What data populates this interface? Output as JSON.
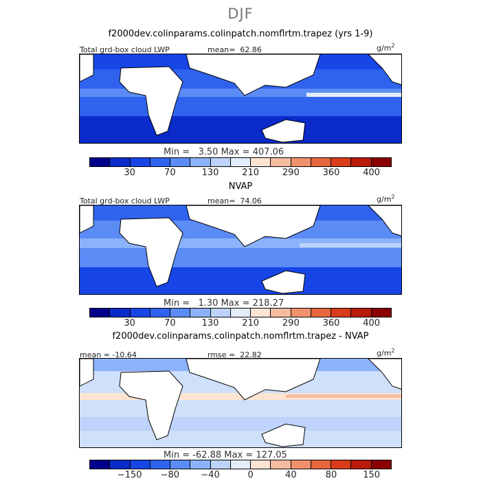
{
  "season_title": "DJF",
  "units_base": "g/m",
  "units_exp": "2",
  "palette": {
    "land": "#ffffff",
    "coast": "#000000",
    "abs_colors": [
      "#00008b",
      "#0a2ac9",
      "#1745e6",
      "#2f63ee",
      "#5b8bf5",
      "#8bb2fa",
      "#bdd3fb",
      "#e3ecfb",
      "#fde3d2",
      "#f7bca0",
      "#f0916d",
      "#e8663e",
      "#d83c1a",
      "#b81a0b",
      "#8a0000"
    ],
    "diff_colors": [
      "#00008b",
      "#0a2ac9",
      "#1745e6",
      "#2f63ee",
      "#5b8bf5",
      "#8bb2fa",
      "#bdd3fb",
      "#e3ecfb",
      "#fde3d2",
      "#f7bca0",
      "#f0916d",
      "#e8663e",
      "#d83c1a",
      "#b81a0b",
      "#8a0000"
    ]
  },
  "panels": [
    {
      "case_title": "f2000dev.colinparams.colinpatch.nomflrtm.trapez (yrs 1-9)",
      "variable": "Total grd-box cloud LWP",
      "stat_label": "mean=",
      "stat_value": "62.86",
      "min_label": "Min =",
      "min_value": "3.50",
      "max_label": "Max =",
      "max_value": "407.06",
      "colorbar_ticks": [
        "30",
        "70",
        "130",
        "210",
        "290",
        "360",
        "400"
      ],
      "ocean_color": "#2f63ee"
    },
    {
      "case_title": "NVAP",
      "variable": "Total grd-box cloud LWP",
      "stat_label": "mean=",
      "stat_value": "74.06",
      "min_label": "Min =",
      "min_value": "1.30",
      "max_label": "Max =",
      "max_value": "218.27",
      "colorbar_ticks": [
        "30",
        "70",
        "130",
        "210",
        "290",
        "360",
        "400"
      ],
      "ocean_color": "#5b8bf5"
    },
    {
      "case_title": "f2000dev.colinparams.colinpatch.nomflrtm.trapez - NVAP",
      "mean_label": "mean =",
      "mean_value": "-10.64",
      "rmse_label": "rmse =",
      "rmse_value": "22.82",
      "min_label": "Min =",
      "min_value": "-62.88",
      "max_label": "Max =",
      "max_value": "127.05",
      "colorbar_ticks": [
        "−150",
        "−80",
        "−40",
        "0",
        "40",
        "80",
        "150"
      ],
      "ocean_color": "#cfe0fb"
    }
  ],
  "chart_data": [
    {
      "type": "heatmap",
      "title": "f2000dev.colinparams.colinpatch.nomflrtm.trapez (yrs 1-9)",
      "variable": "Total grd-box cloud LWP",
      "units": "g/m2",
      "mean": 62.86,
      "min": 3.5,
      "max": 407.06,
      "contour_levels": [
        30,
        70,
        130,
        210,
        290,
        360,
        400
      ]
    },
    {
      "type": "heatmap",
      "title": "NVAP",
      "variable": "Total grd-box cloud LWP",
      "units": "g/m2",
      "mean": 74.06,
      "min": 1.3,
      "max": 218.27,
      "contour_levels": [
        30,
        70,
        130,
        210,
        290,
        360,
        400
      ]
    },
    {
      "type": "heatmap",
      "title": "f2000dev.colinparams.colinpatch.nomflrtm.trapez - NVAP",
      "units": "g/m2",
      "mean": -10.64,
      "rmse": 22.82,
      "min": -62.88,
      "max": 127.05,
      "contour_levels": [
        -150,
        -80,
        -40,
        0,
        40,
        80,
        150
      ]
    }
  ]
}
